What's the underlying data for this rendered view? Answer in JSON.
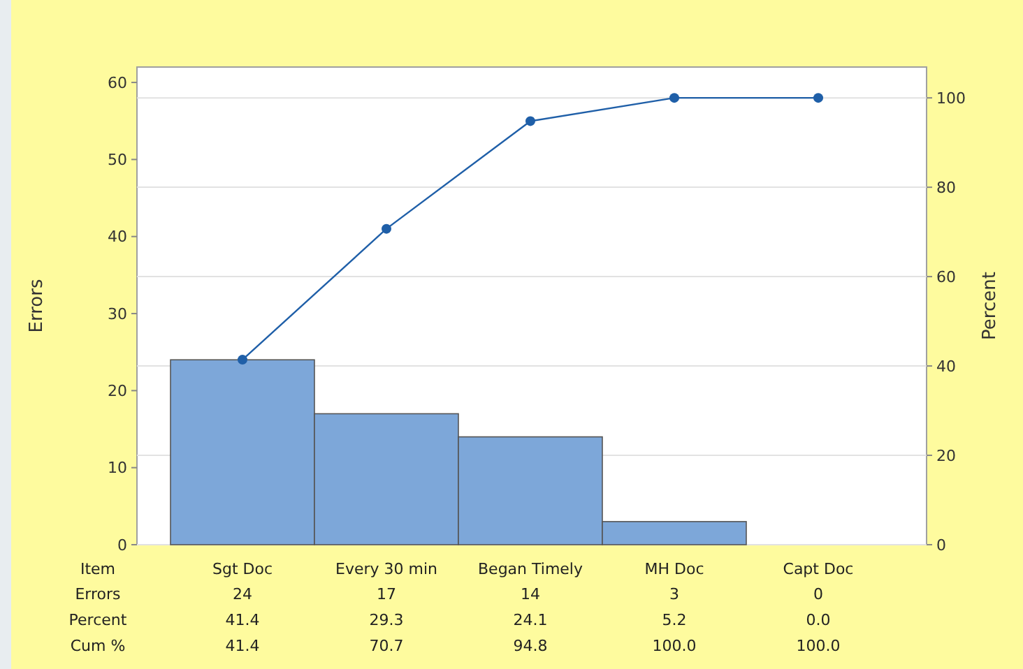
{
  "chart_data": {
    "type": "bar",
    "categories": [
      "Sgt Doc",
      "Every 30 min",
      "Began Timely",
      "MH Doc",
      "Capt Doc"
    ],
    "xlabel": "Item",
    "ylabel": "Errors",
    "y2label": "Percent",
    "series": [
      {
        "color": "#7da7d9",
        "values": [
          24,
          17,
          14,
          3,
          0
        ],
        "value_labels": [
          "24",
          "17",
          "14",
          "3",
          "0"
        ]
      },
      {
        "type": "line",
        "axis": "y2",
        "color": "#1f5fa8",
        "values": [
          41.4,
          70.7,
          94.8,
          100.0,
          100.0
        ],
        "value_labels": [
          "41.4",
          "70.7",
          "94.8",
          "100.0",
          "100.0"
        ]
      }
    ],
    "ylim": [
      0,
      62
    ],
    "yticks": [
      0,
      10,
      20,
      30,
      40,
      50,
      60
    ],
    "y2lim": [
      0,
      106.9
    ],
    "y2ticks": [
      0,
      20,
      40,
      60,
      80,
      100
    ],
    "annotations": [
      "Errors",
      "Percent",
      "Cum %",
      "41.4",
      "29.3",
      "24.1",
      "5.2",
      "0.0"
    ],
    "grid": "y2",
    "marker": "circle",
    "line_style": "solid"
  }
}
